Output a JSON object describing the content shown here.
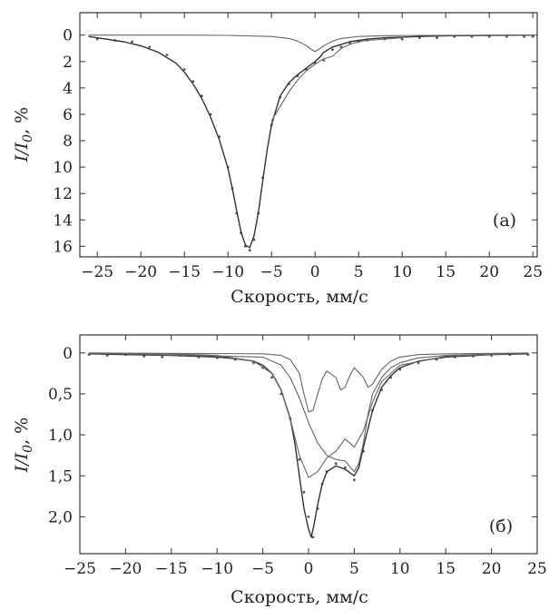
{
  "chart_data": [
    {
      "type": "scatter",
      "panel_label": "(а)",
      "xlabel": "Скорость, мм/с",
      "ylabel_main": "I/I",
      "ylabel_sub": "0",
      "ylabel_unit": ", %",
      "xlim": [
        -27,
        25.5
      ],
      "ylim": [
        -1.7,
        16.8
      ],
      "y_inverted": true,
      "xticks": [
        -25,
        -20,
        -15,
        -10,
        -5,
        0,
        5,
        10,
        15,
        20,
        25
      ],
      "xtick_labels": [
        "−25",
        "−20",
        "−15",
        "−10",
        "−5",
        "0",
        "5",
        "10",
        "15",
        "20",
        "25"
      ],
      "yticks": [
        0,
        2,
        4,
        6,
        8,
        10,
        12,
        14,
        16
      ],
      "ytick_labels": [
        "0",
        "2",
        "4",
        "6",
        "8",
        "10",
        "12",
        "14",
        "16"
      ],
      "series": [
        {
          "kind": "points",
          "x": [
            -25,
            -23,
            -21,
            -19,
            -17,
            -15,
            -14,
            -13,
            -12,
            -11,
            -10,
            -9.5,
            -9,
            -8.5,
            -8,
            -7.5,
            -7,
            -6.5,
            -6,
            -5,
            -4,
            -3,
            -2,
            -1,
            0,
            1,
            2,
            3,
            4,
            5,
            6,
            8,
            10,
            12,
            14,
            16,
            18,
            20,
            22,
            24,
            25
          ],
          "y": [
            0.3,
            0.4,
            0.5,
            0.9,
            1.5,
            2.6,
            3.5,
            4.6,
            6.0,
            7.7,
            10.0,
            11.6,
            13.5,
            15.0,
            16.0,
            16.3,
            15.5,
            13.5,
            10.8,
            6.8,
            4.7,
            3.7,
            3.1,
            2.6,
            2.1,
            1.9,
            1.1,
            0.9,
            0.6,
            0.5,
            0.4,
            0.3,
            0.3,
            0.2,
            0.2,
            0.1,
            0.1,
            0.1,
            0.1,
            0.1,
            0.1
          ]
        },
        {
          "kind": "line",
          "x": [
            -26,
            -24,
            -22,
            -20,
            -18,
            -16,
            -15,
            -14,
            -13,
            -12,
            -11,
            -10,
            -9.5,
            -9,
            -8.5,
            -8,
            -7.5,
            -7,
            -6.5,
            -6,
            -5.5,
            -5,
            -4,
            -3,
            -2,
            -1,
            0,
            0.5,
            1,
            2,
            3,
            4,
            5,
            6,
            8,
            10,
            12,
            15,
            20,
            25
          ],
          "y": [
            0.1,
            0.3,
            0.5,
            0.8,
            1.3,
            2.1,
            2.8,
            3.7,
            4.8,
            6.2,
            7.9,
            10.1,
            11.6,
            13.3,
            14.9,
            15.9,
            16.1,
            15.2,
            13.4,
            11.0,
            8.7,
            6.8,
            4.6,
            3.6,
            3.0,
            2.5,
            2.0,
            1.7,
            1.3,
            0.9,
            0.7,
            0.5,
            0.4,
            0.3,
            0.2,
            0.15,
            0.1,
            0.05,
            0.02,
            0
          ]
        },
        {
          "kind": "line",
          "x": [
            -26,
            -15,
            -10,
            -5,
            -3,
            -2,
            -1,
            -0.5,
            0,
            0.5,
            1,
            2,
            3,
            5,
            8,
            12,
            25
          ],
          "y": [
            0,
            0,
            0.02,
            0.1,
            0.25,
            0.45,
            0.8,
            1.05,
            1.25,
            1.05,
            0.8,
            0.45,
            0.25,
            0.1,
            0.04,
            0.02,
            0
          ]
        },
        {
          "kind": "line",
          "x": [
            -5,
            -3,
            -2,
            -1,
            0,
            1,
            2,
            3,
            4,
            5,
            6,
            8,
            10
          ],
          "y": [
            6.5,
            4.3,
            3.4,
            2.7,
            2.2,
            1.8,
            1.6,
            1.0,
            0.7,
            0.5,
            0.4,
            0.3,
            0.2
          ]
        }
      ]
    },
    {
      "type": "scatter",
      "panel_label": "(б)",
      "xlabel": "Скорость, мм/с",
      "ylabel_main": "I/I",
      "ylabel_sub": "0",
      "ylabel_unit": ", %",
      "xlim": [
        -25,
        25
      ],
      "ylim": [
        -0.22,
        2.45
      ],
      "y_inverted": true,
      "xticks": [
        -25,
        -20,
        -15,
        -10,
        -5,
        0,
        5,
        10,
        15,
        20,
        25
      ],
      "xtick_labels": [
        "−25",
        "−20",
        "−15",
        "−10",
        "−5",
        "0",
        "5",
        "10",
        "15",
        "20",
        "25"
      ],
      "yticks": [
        0,
        0.5,
        1.0,
        1.5,
        2.0
      ],
      "ytick_labels": [
        "0",
        "0,5",
        "1,0",
        "1,5",
        "2,0"
      ],
      "series": [
        {
          "kind": "points",
          "x": [
            -24,
            -22,
            -20,
            -18,
            -16,
            -14,
            -12,
            -10,
            -8,
            -6,
            -5,
            -4,
            -3,
            -2,
            -1,
            -0.5,
            0,
            0.5,
            1,
            1.5,
            2,
            3,
            4,
            5,
            6,
            7,
            8,
            9,
            10,
            12,
            14,
            16,
            18,
            20,
            22,
            24
          ],
          "y": [
            0.02,
            0.03,
            0.02,
            0.04,
            0.05,
            0.03,
            0.05,
            0.06,
            0.08,
            0.12,
            0.18,
            0.3,
            0.5,
            0.8,
            1.3,
            1.7,
            2.0,
            2.25,
            1.9,
            1.6,
            1.45,
            1.35,
            1.4,
            1.55,
            1.2,
            0.7,
            0.45,
            0.3,
            0.2,
            0.12,
            0.08,
            0.05,
            0.04,
            0.03,
            0.02,
            0.02
          ]
        },
        {
          "kind": "line",
          "x": [
            -24,
            -20,
            -15,
            -10,
            -8,
            -6,
            -5,
            -4,
            -3,
            -2,
            -1.5,
            -1,
            -0.5,
            0,
            0.3,
            0.6,
            1,
            1.5,
            2,
            3,
            4,
            5,
            5.5,
            6,
            7,
            8,
            9,
            10,
            12,
            15,
            20,
            24
          ],
          "y": [
            0.01,
            0.02,
            0.03,
            0.05,
            0.07,
            0.1,
            0.15,
            0.25,
            0.45,
            0.8,
            1.1,
            1.5,
            1.9,
            2.15,
            2.25,
            2.1,
            1.85,
            1.6,
            1.45,
            1.38,
            1.42,
            1.5,
            1.4,
            1.15,
            0.7,
            0.42,
            0.28,
            0.18,
            0.1,
            0.05,
            0.02,
            0.01
          ]
        },
        {
          "kind": "line",
          "x": [
            -24,
            -15,
            -10,
            -6,
            -4,
            -3,
            -2,
            -1,
            0,
            1,
            2,
            3,
            4,
            5,
            6,
            7,
            8,
            10,
            15,
            24
          ],
          "y": [
            0,
            0.01,
            0.03,
            0.1,
            0.25,
            0.45,
            0.8,
            1.25,
            1.52,
            1.45,
            1.28,
            1.2,
            1.05,
            1.15,
            0.95,
            0.6,
            0.35,
            0.15,
            0.04,
            0
          ]
        },
        {
          "kind": "line",
          "x": [
            -24,
            -5,
            -3,
            -2,
            -1,
            -0.5,
            0,
            0.5,
            1,
            1.5,
            2,
            3,
            3.5,
            4,
            4.5,
            5,
            6,
            6.5,
            7,
            8,
            9,
            10,
            12,
            15,
            24
          ],
          "y": [
            0,
            0.01,
            0.03,
            0.08,
            0.25,
            0.5,
            0.72,
            0.7,
            0.5,
            0.32,
            0.22,
            0.3,
            0.45,
            0.42,
            0.28,
            0.18,
            0.3,
            0.42,
            0.38,
            0.2,
            0.1,
            0.05,
            0.02,
            0.01,
            0
          ]
        },
        {
          "kind": "line",
          "x": [
            -24,
            -5,
            -3,
            -2,
            -1,
            0,
            1,
            2,
            3,
            4,
            5,
            5.5,
            6,
            6.5,
            7,
            8,
            9,
            10,
            12,
            15,
            24
          ],
          "y": [
            0,
            0.05,
            0.15,
            0.3,
            0.55,
            0.85,
            1.1,
            1.25,
            1.3,
            1.32,
            1.45,
            1.35,
            1.1,
            0.75,
            0.5,
            0.3,
            0.18,
            0.12,
            0.06,
            0.03,
            0
          ]
        }
      ]
    }
  ]
}
